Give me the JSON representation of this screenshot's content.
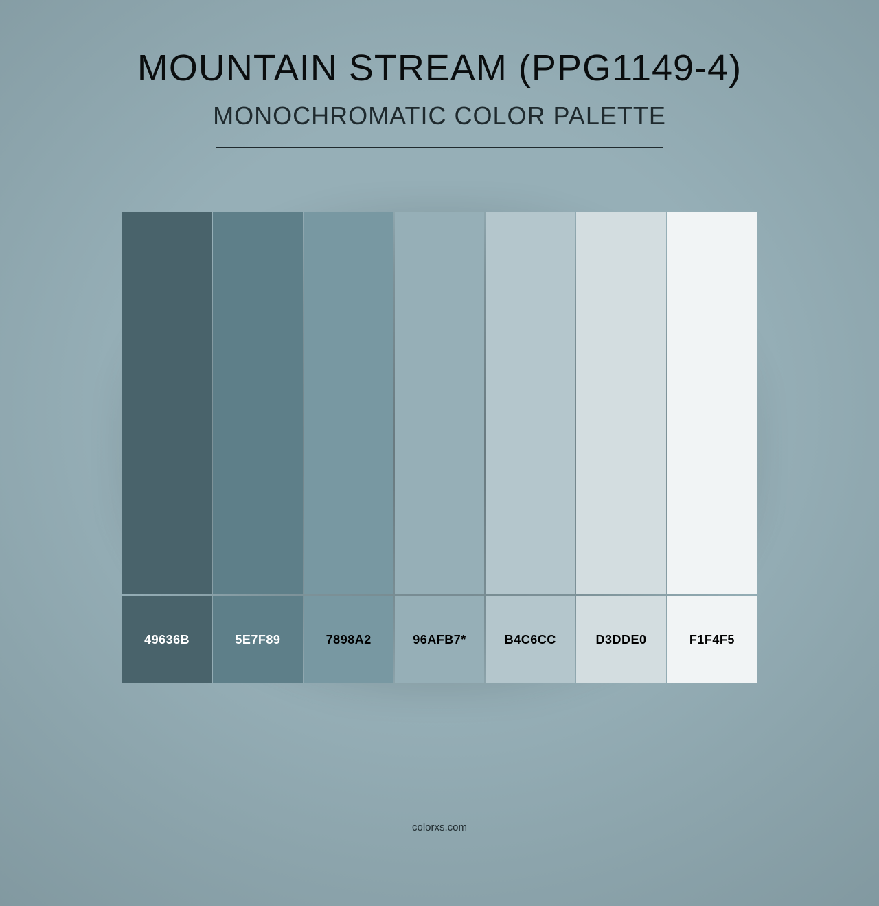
{
  "page": {
    "background_color": "#96afb7",
    "vignette_color": "rgba(40,55,60,0.25)"
  },
  "header": {
    "title": "MOUNTAIN STREAM (PPG1149-4)",
    "title_color": "#0a0d0e",
    "title_fontsize": 54,
    "subtitle": "MONOCHROMATIC COLOR PALETTE",
    "subtitle_color": "#1f2a2e",
    "subtitle_fontsize": 36,
    "rule_color": "#1f2a2e",
    "rule_width": 650
  },
  "palette": {
    "type": "color-swatches",
    "swatch_count": 7,
    "swatch_top_height": 556,
    "swatch_bottom_height": 126,
    "col_gap": 2,
    "row_gap": 4,
    "label_fontsize": 18,
    "label_light_color": "#ffffff",
    "label_dark_color": "#000000",
    "swatches": [
      {
        "hex": "#49636b",
        "label": "49636B",
        "label_color": "#ffffff"
      },
      {
        "hex": "#5e7f89",
        "label": "5E7F89",
        "label_color": "#ffffff"
      },
      {
        "hex": "#7898a2",
        "label": "7898A2",
        "label_color": "#000000"
      },
      {
        "hex": "#96afb7",
        "label": "96AFB7*",
        "label_color": "#000000"
      },
      {
        "hex": "#b4c6cc",
        "label": "B4C6CC",
        "label_color": "#000000"
      },
      {
        "hex": "#d3dde0",
        "label": "D3DDE0",
        "label_color": "#000000"
      },
      {
        "hex": "#f1f4f5",
        "label": "F1F4F5",
        "label_color": "#000000"
      }
    ]
  },
  "footer": {
    "text": "colorxs.com",
    "color": "#1f2a2e",
    "fontsize": 15
  }
}
